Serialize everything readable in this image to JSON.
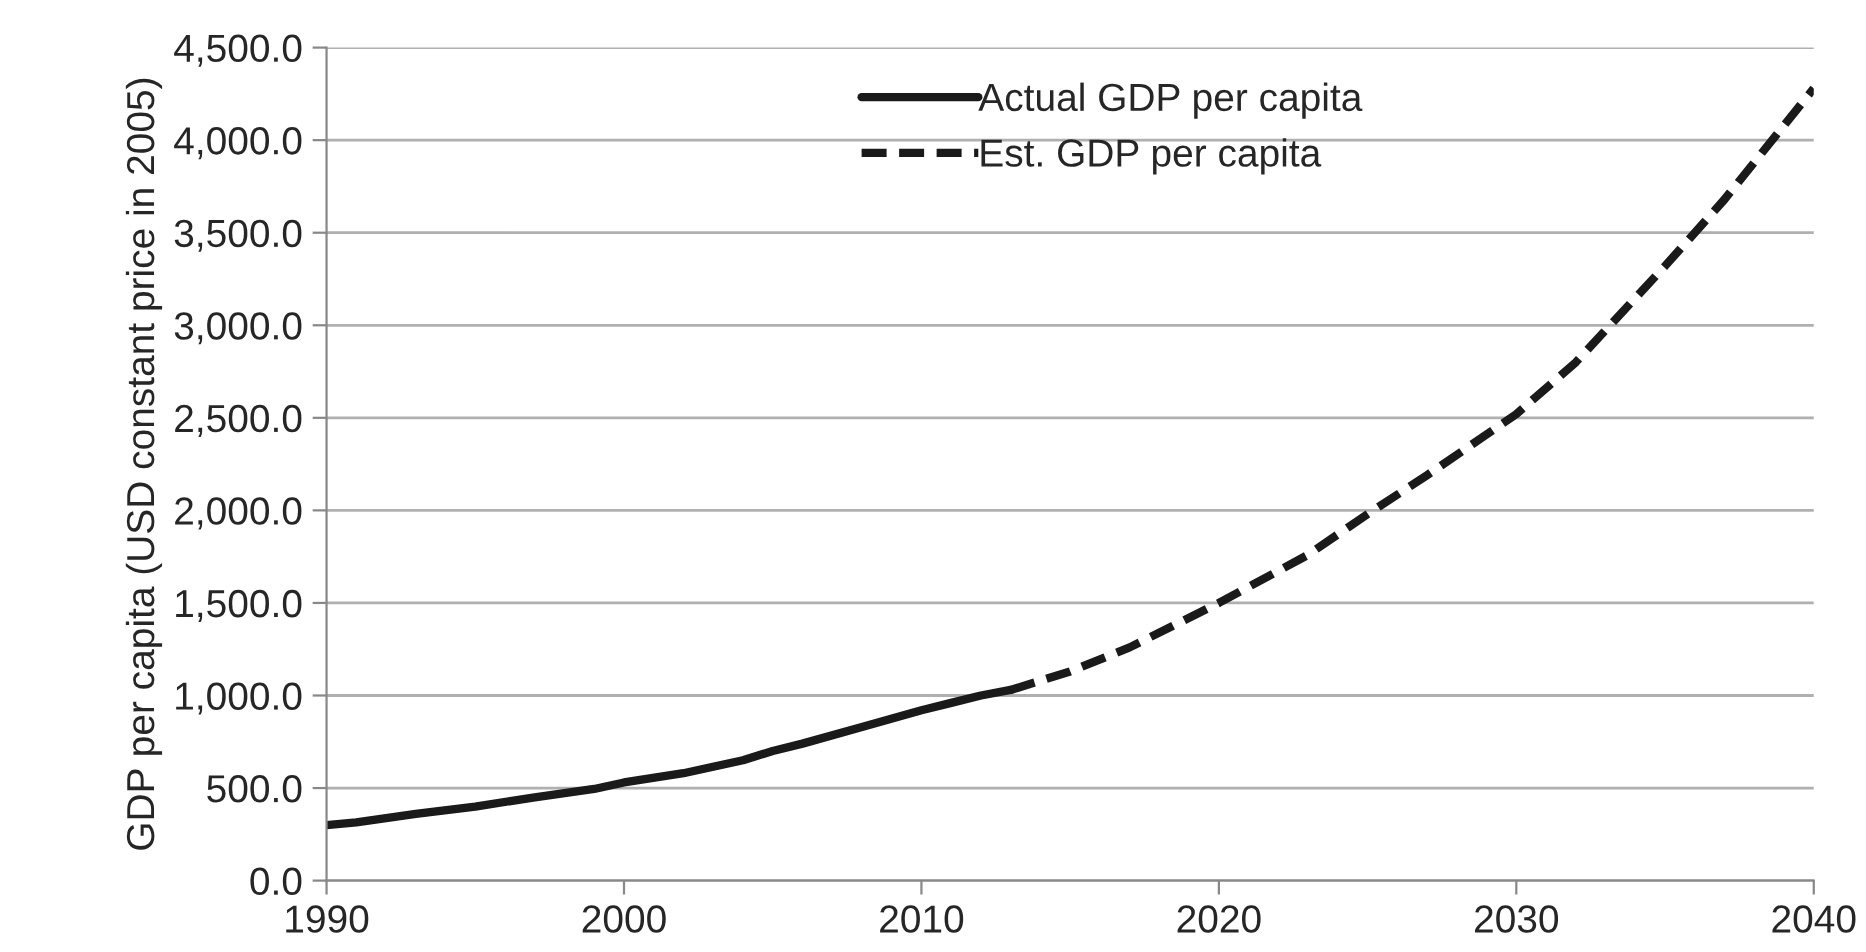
{
  "chart_data": {
    "type": "line",
    "ylabel": "GDP per capita (USD constant price in 2005)",
    "xlim": [
      1990,
      2040
    ],
    "xticks": [
      1990,
      2000,
      2010,
      2020,
      2030,
      2040
    ],
    "ylim": [
      0,
      4500
    ],
    "yticks": [
      {
        "value": 0,
        "label": "0.0"
      },
      {
        "value": 500,
        "label": "500.0"
      },
      {
        "value": 1000,
        "label": "1,000.0"
      },
      {
        "value": 1500,
        "label": "1,500.0"
      },
      {
        "value": 2000,
        "label": "2,000.0"
      },
      {
        "value": 2500,
        "label": "2,500.0"
      },
      {
        "value": 3000,
        "label": "3,000.0"
      },
      {
        "value": 3500,
        "label": "3,500.0"
      },
      {
        "value": 4000,
        "label": "4,000.0"
      },
      {
        "value": 4500,
        "label": "4,500.0"
      }
    ],
    "grid": "y",
    "legend": "top right",
    "marker": "none",
    "series": [
      {
        "name": "Actual GDP per capita",
        "color": "#1a1a1a",
        "line_style": "solid",
        "x": [
          1990,
          1991,
          1993,
          1995,
          1997,
          1999,
          2000,
          2002,
          2004,
          2005,
          2006,
          2008,
          2010,
          2011,
          2012,
          2013
        ],
        "values": [
          300,
          315,
          360,
          400,
          450,
          495,
          530,
          580,
          650,
          700,
          740,
          830,
          920,
          960,
          1000,
          1030
        ]
      },
      {
        "name": "Est. GDP per capita",
        "color": "#1a1a1a",
        "line_style": "dashed",
        "x": [
          2013,
          2015,
          2017,
          2020,
          2023,
          2025,
          2027,
          2030,
          2032,
          2035,
          2037,
          2040
        ],
        "values": [
          1030,
          1130,
          1260,
          1500,
          1760,
          1980,
          2190,
          2520,
          2800,
          3320,
          3680,
          4280
        ]
      }
    ]
  }
}
